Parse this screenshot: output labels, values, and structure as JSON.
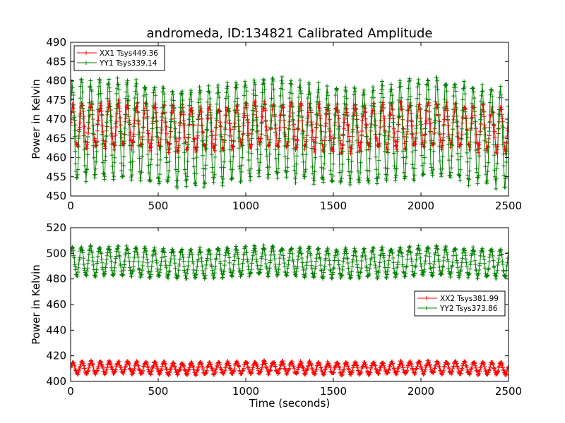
{
  "figure": {
    "title": "andromeda, ID:134821 Calibrated Amplitude"
  },
  "chart_data": [
    {
      "type": "line",
      "title": "andromeda, ID:134821 Calibrated Amplitude",
      "xlabel": "",
      "ylabel": "Power in Kelvin",
      "xlim": [
        0,
        2500
      ],
      "ylim": [
        450,
        490
      ],
      "xticks": [
        "0",
        "500",
        "1000",
        "1500",
        "2000",
        "2500"
      ],
      "yticks": [
        "450",
        "455",
        "460",
        "465",
        "470",
        "475",
        "480",
        "485",
        "490"
      ],
      "grid": false,
      "legend_position": "upper-left",
      "series": [
        {
          "name": "XX1 Tsys449.36",
          "color": "#ff0000",
          "marker": "+",
          "mean": 468.0,
          "amplitude": 5.5,
          "period_seconds": 52,
          "noise": 1.0,
          "approx_range": [
            463,
            477
          ]
        },
        {
          "name": "YY1 Tsys339.14",
          "color": "#008000",
          "marker": "+",
          "mean": 466.5,
          "amplitude": 12.5,
          "period_seconds": 52,
          "noise": 1.2,
          "approx_range": [
            452,
            482
          ]
        }
      ]
    },
    {
      "type": "line",
      "title": "",
      "xlabel": "Time (seconds)",
      "ylabel": "Power in Kelvin",
      "xlim": [
        0,
        2500
      ],
      "ylim": [
        400,
        520
      ],
      "xticks": [
        "0",
        "500",
        "1000",
        "1500",
        "2000",
        "2500"
      ],
      "yticks": [
        "400",
        "420",
        "440",
        "460",
        "480",
        "500",
        "520"
      ],
      "grid": false,
      "legend_position": "center-right",
      "series": [
        {
          "name": "XX2 Tsys381.99",
          "color": "#ff0000",
          "marker": "+",
          "mean": 410.5,
          "amplitude": 4.5,
          "period_seconds": 52,
          "noise": 1.0,
          "approx_range": [
            405,
            420
          ]
        },
        {
          "name": "YY2 Tsys373.86",
          "color": "#008000",
          "marker": "+",
          "mean": 493.0,
          "amplitude": 11.0,
          "period_seconds": 52,
          "noise": 1.5,
          "approx_range": [
            480,
            510
          ]
        }
      ]
    }
  ]
}
